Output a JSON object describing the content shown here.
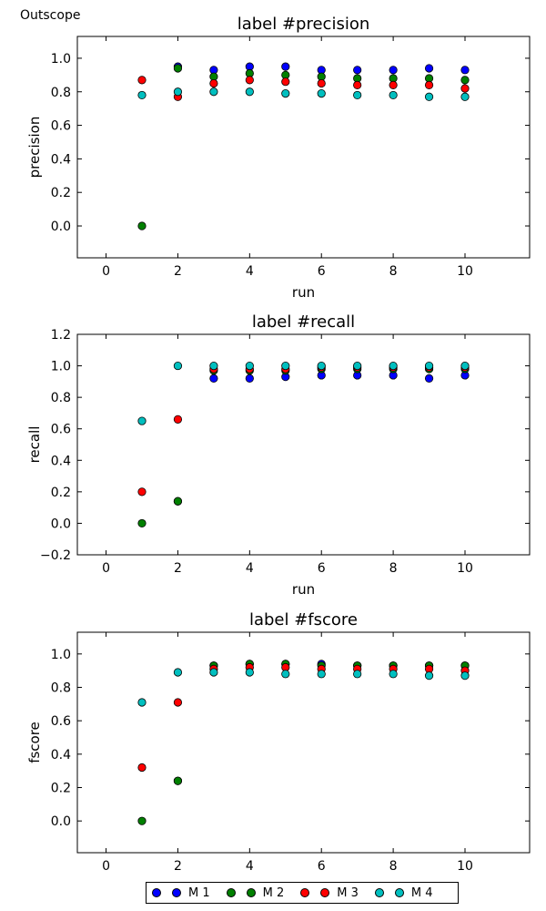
{
  "suptitle": "Outscope",
  "legend": [
    {
      "label": "M 1",
      "color": "#0000ff"
    },
    {
      "label": "M 2",
      "color": "#008000"
    },
    {
      "label": "M 3",
      "color": "#ff0000"
    },
    {
      "label": "M 4",
      "color": "#00bfbf"
    }
  ],
  "chart_data": [
    {
      "type": "scatter",
      "title": "label #precision",
      "xlabel": "run",
      "ylabel": "precision",
      "xlim": [
        -0.8,
        11.8
      ],
      "ylim": [
        -0.19,
        1.13
      ],
      "xticks": [
        0,
        2,
        4,
        6,
        8,
        10
      ],
      "yticks": [
        0.0,
        0.2,
        0.4,
        0.6,
        0.8,
        1.0
      ],
      "ytick_labels": [
        "0.0",
        "0.2",
        "0.4",
        "0.6",
        "0.8",
        "1.0"
      ],
      "x": [
        1,
        2,
        3,
        4,
        5,
        6,
        7,
        8,
        9,
        10
      ],
      "series": [
        {
          "name": "M 1",
          "color": "#0000ff",
          "values": [
            null,
            0.95,
            0.93,
            0.95,
            0.95,
            0.93,
            0.93,
            0.93,
            0.94,
            0.93
          ]
        },
        {
          "name": "M 2",
          "color": "#008000",
          "values": [
            0.0,
            0.94,
            0.89,
            0.91,
            0.9,
            0.89,
            0.88,
            0.88,
            0.88,
            0.87
          ]
        },
        {
          "name": "M 3",
          "color": "#ff0000",
          "values": [
            0.87,
            0.77,
            0.85,
            0.87,
            0.86,
            0.85,
            0.84,
            0.84,
            0.84,
            0.82
          ]
        },
        {
          "name": "M 4",
          "color": "#00bfbf",
          "values": [
            0.78,
            0.8,
            0.8,
            0.8,
            0.79,
            0.79,
            0.78,
            0.78,
            0.77,
            0.77
          ]
        }
      ]
    },
    {
      "type": "scatter",
      "title": "label #recall",
      "xlabel": "run",
      "ylabel": "recall",
      "xlim": [
        -0.8,
        11.8
      ],
      "ylim": [
        -0.2,
        1.2
      ],
      "xticks": [
        0,
        2,
        4,
        6,
        8,
        10
      ],
      "yticks": [
        -0.2,
        0.0,
        0.2,
        0.4,
        0.6,
        0.8,
        1.0,
        1.2
      ],
      "ytick_labels": [
        "−0.2",
        "0.0",
        "0.2",
        "0.4",
        "0.6",
        "0.8",
        "1.0",
        "1.2"
      ],
      "x": [
        1,
        2,
        3,
        4,
        5,
        6,
        7,
        8,
        9,
        10
      ],
      "series": [
        {
          "name": "M 1",
          "color": "#0000ff",
          "values": [
            null,
            0.14,
            0.92,
            0.92,
            0.93,
            0.94,
            0.94,
            0.94,
            0.92,
            0.94
          ]
        },
        {
          "name": "M 2",
          "color": "#008000",
          "values": [
            0.0,
            0.14,
            0.97,
            0.97,
            0.97,
            0.98,
            0.98,
            0.98,
            0.98,
            0.98
          ]
        },
        {
          "name": "M 3",
          "color": "#ff0000",
          "values": [
            0.2,
            0.66,
            0.98,
            0.98,
            0.98,
            0.99,
            0.99,
            0.99,
            0.99,
            0.99
          ]
        },
        {
          "name": "M 4",
          "color": "#00bfbf",
          "values": [
            0.65,
            1.0,
            1.0,
            1.0,
            1.0,
            1.0,
            1.0,
            1.0,
            1.0,
            1.0
          ]
        }
      ]
    },
    {
      "type": "scatter",
      "title": "label #fscore",
      "xlabel": "",
      "ylabel": "fscore",
      "xlim": [
        -0.8,
        11.8
      ],
      "ylim": [
        -0.19,
        1.13
      ],
      "xticks": [
        0,
        2,
        4,
        6,
        8,
        10
      ],
      "yticks": [
        0.0,
        0.2,
        0.4,
        0.6,
        0.8,
        1.0
      ],
      "ytick_labels": [
        "0.0",
        "0.2",
        "0.4",
        "0.6",
        "0.8",
        "1.0"
      ],
      "x": [
        1,
        2,
        3,
        4,
        5,
        6,
        7,
        8,
        9,
        10
      ],
      "series": [
        {
          "name": "M 1",
          "color": "#0000ff",
          "values": [
            null,
            0.24,
            0.93,
            0.94,
            0.94,
            0.94,
            0.93,
            0.93,
            0.93,
            0.93
          ]
        },
        {
          "name": "M 2",
          "color": "#008000",
          "values": [
            0.0,
            0.24,
            0.93,
            0.94,
            0.94,
            0.93,
            0.93,
            0.93,
            0.93,
            0.93
          ]
        },
        {
          "name": "M 3",
          "color": "#ff0000",
          "values": [
            0.32,
            0.71,
            0.91,
            0.92,
            0.92,
            0.91,
            0.91,
            0.91,
            0.91,
            0.9
          ]
        },
        {
          "name": "M 4",
          "color": "#00bfbf",
          "values": [
            0.71,
            0.89,
            0.89,
            0.89,
            0.88,
            0.88,
            0.88,
            0.88,
            0.87,
            0.87
          ]
        }
      ]
    }
  ]
}
